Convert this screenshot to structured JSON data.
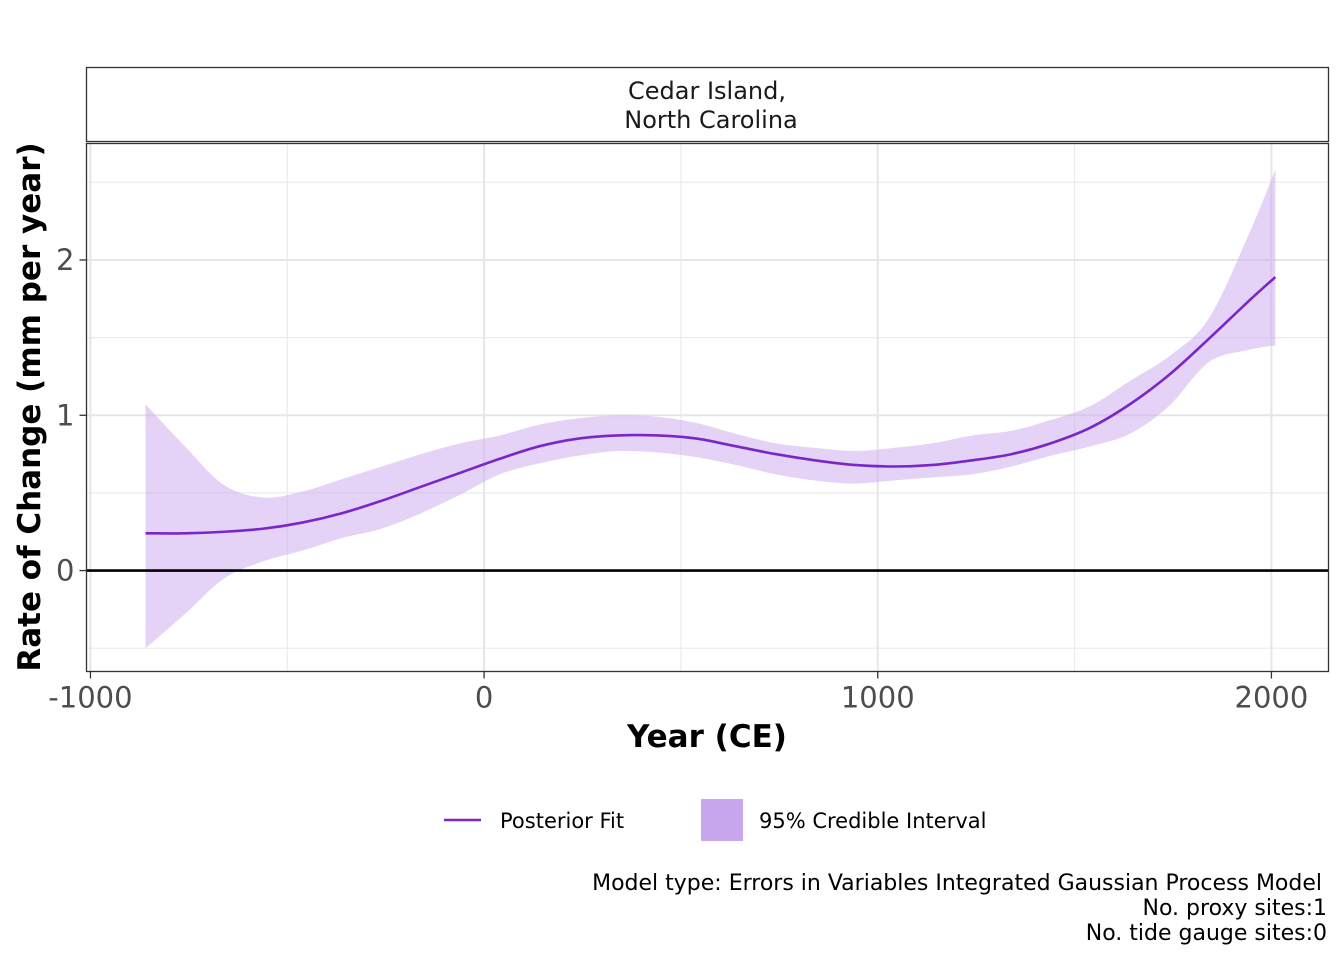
{
  "chart_data": {
    "type": "line",
    "panel_title_lines": [
      "Cedar Island,",
      "North Carolina"
    ],
    "xlabel": "Year (CE)",
    "ylabel": "Rate of Change (mm per year)",
    "xlim": [
      -1010,
      2145
    ],
    "ylim": [
      -0.65,
      2.75
    ],
    "x_ticks": [
      -1000,
      0,
      1000,
      2000
    ],
    "x_tick_labels": [
      "-1000",
      "0",
      "1000",
      "2000"
    ],
    "x_minor_ticks": [
      -500,
      500,
      1500
    ],
    "y_ticks": [
      0,
      1,
      2
    ],
    "y_tick_labels": [
      "0",
      "1",
      "2"
    ],
    "y_minor_ticks": [
      -0.5,
      0.5,
      1.5,
      2.5
    ],
    "reference_line_y": 0,
    "grid": true,
    "legend_position": "bottom",
    "legend": [
      {
        "label": "Posterior Fit",
        "kind": "line",
        "color": "#7b26c9"
      },
      {
        "label": "95% Credible Interval",
        "kind": "fill",
        "color": "#c9a7ee"
      }
    ],
    "caption_lines": [
      "Model type: Errors in Variables Integrated Gaussian Process Model",
      "No. proxy sites:1",
      "No. tide gauge sites:0"
    ],
    "series": [
      {
        "name": "Posterior Fit",
        "color": "#7b26c9",
        "x": [
          -860,
          -760,
          -660,
          -560,
          -460,
          -360,
          -260,
          -160,
          -60,
          40,
          140,
          240,
          340,
          440,
          540,
          640,
          740,
          840,
          940,
          1040,
          1140,
          1240,
          1340,
          1440,
          1540,
          1640,
          1740,
          1840,
          1940,
          2010
        ],
        "y": [
          0.24,
          0.24,
          0.25,
          0.27,
          0.31,
          0.37,
          0.45,
          0.54,
          0.63,
          0.72,
          0.8,
          0.85,
          0.87,
          0.87,
          0.85,
          0.8,
          0.75,
          0.71,
          0.68,
          0.67,
          0.68,
          0.71,
          0.75,
          0.82,
          0.92,
          1.07,
          1.26,
          1.49,
          1.73,
          1.89
        ]
      },
      {
        "name": "95% Credible Interval",
        "color": "#c9a7ee",
        "x": [
          -860,
          -760,
          -660,
          -560,
          -460,
          -360,
          -260,
          -160,
          -60,
          40,
          140,
          240,
          340,
          440,
          540,
          640,
          740,
          840,
          940,
          1040,
          1140,
          1240,
          1340,
          1440,
          1540,
          1640,
          1740,
          1840,
          1940,
          2010
        ],
        "lower": [
          -0.5,
          -0.28,
          -0.05,
          0.06,
          0.13,
          0.21,
          0.27,
          0.37,
          0.49,
          0.62,
          0.69,
          0.74,
          0.77,
          0.76,
          0.73,
          0.68,
          0.62,
          0.58,
          0.56,
          0.58,
          0.6,
          0.62,
          0.67,
          0.74,
          0.8,
          0.88,
          1.06,
          1.34,
          1.42,
          1.45
        ],
        "upper": [
          1.07,
          0.8,
          0.55,
          0.47,
          0.51,
          0.59,
          0.67,
          0.75,
          0.82,
          0.87,
          0.94,
          0.98,
          1.0,
          0.99,
          0.95,
          0.88,
          0.82,
          0.79,
          0.77,
          0.79,
          0.82,
          0.87,
          0.9,
          0.97,
          1.06,
          1.22,
          1.38,
          1.62,
          2.15,
          2.58
        ]
      }
    ]
  }
}
